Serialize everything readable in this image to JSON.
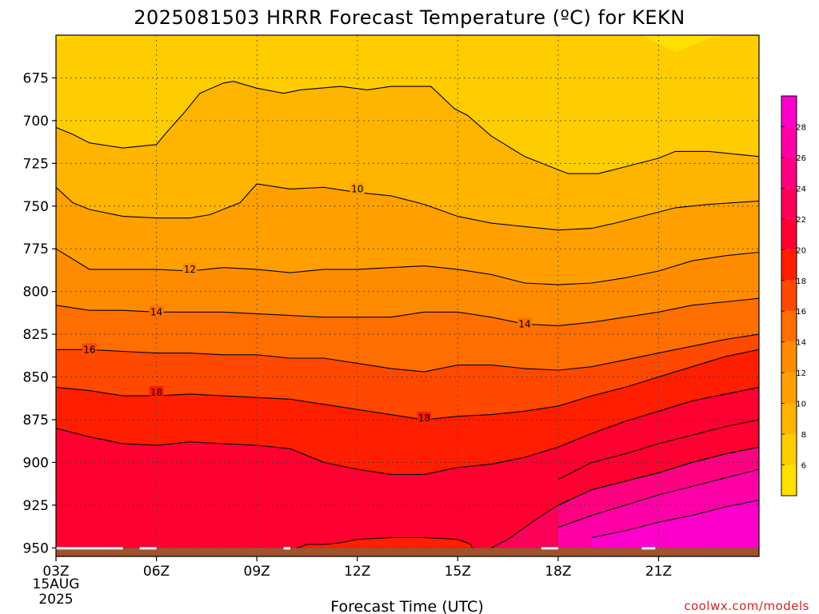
{
  "chart_data": {
    "type": "heatmap",
    "title": "2025081503 HRRR Forecast Temperature (ºC) for KEKN",
    "xlabel": "Forecast Time (UTC)",
    "ylabel": "",
    "date_labels": [
      "15AUG",
      "2025"
    ],
    "x_ticks": [
      "03Z",
      "06Z",
      "09Z",
      "12Z",
      "15Z",
      "18Z",
      "21Z"
    ],
    "x_hours": [
      3,
      6,
      9,
      12,
      15,
      18,
      21
    ],
    "y_ticks": [
      675,
      700,
      725,
      750,
      775,
      800,
      825,
      850,
      875,
      900,
      925,
      950
    ],
    "ylim": [
      955,
      650
    ],
    "y_axis": "pressure (hPa), reversed",
    "grid": true,
    "colorbar": {
      "ticks": [
        6,
        8,
        10,
        12,
        14,
        16,
        18,
        20,
        22,
        24,
        26,
        28
      ],
      "bins": [
        {
          "lo": 4,
          "hi": 6,
          "color": "#ffe000"
        },
        {
          "lo": 6,
          "hi": 8,
          "color": "#ffcc00"
        },
        {
          "lo": 8,
          "hi": 10,
          "color": "#ffb400"
        },
        {
          "lo": 10,
          "hi": 12,
          "color": "#ffa000"
        },
        {
          "lo": 12,
          "hi": 14,
          "color": "#ff8c00"
        },
        {
          "lo": 14,
          "hi": 16,
          "color": "#ff6e00"
        },
        {
          "lo": 16,
          "hi": 18,
          "color": "#ff4800"
        },
        {
          "lo": 18,
          "hi": 20,
          "color": "#ff1e00"
        },
        {
          "lo": 20,
          "hi": 22,
          "color": "#ff0030"
        },
        {
          "lo": 22,
          "hi": 24,
          "color": "#ff0058"
        },
        {
          "lo": 24,
          "hi": 26,
          "color": "#ff0080"
        },
        {
          "lo": 26,
          "hi": 28,
          "color": "#ff00a8"
        },
        {
          "lo": 28,
          "hi": 30,
          "color": "#ff00cc"
        }
      ]
    },
    "contour_labels": [
      {
        "text": "10",
        "hour": 9.0,
        "p": 740
      },
      {
        "text": "12",
        "hour": 4.0,
        "p": 787
      },
      {
        "text": "14",
        "hour": 3.0,
        "p": 812
      },
      {
        "text": "14",
        "hour": 14.0,
        "p": 819
      },
      {
        "text": "16",
        "hour": 1.0,
        "p": 834
      },
      {
        "text": "18",
        "hour": 3.0,
        "p": 859
      },
      {
        "text": "18",
        "hour": 11.0,
        "p": 874
      }
    ],
    "isotherms": [
      {
        "t": 6,
        "points": [
          [
            0,
            653
          ],
          [
            0.5,
            651
          ],
          [
            1,
            650
          ],
          [
            2,
            650
          ],
          [
            4,
            650
          ],
          [
            7.5,
            650
          ],
          [
            8,
            650
          ],
          [
            8.5,
            650
          ],
          [
            9,
            650
          ],
          [
            9.5,
            650
          ],
          [
            10,
            650
          ],
          [
            12,
            650
          ],
          [
            14,
            650
          ],
          [
            15,
            650
          ],
          [
            16,
            650
          ],
          [
            17.5,
            650
          ],
          [
            18.5,
            660
          ],
          [
            19.5,
            652
          ],
          [
            20,
            650
          ],
          [
            21,
            650
          ]
        ]
      },
      {
        "t": 8,
        "points": [
          [
            0,
            704
          ],
          [
            0.5,
            708
          ],
          [
            1,
            713
          ],
          [
            2,
            716
          ],
          [
            3,
            714
          ],
          [
            3.3,
            707
          ],
          [
            3.8,
            696
          ],
          [
            4.3,
            684
          ],
          [
            5,
            678
          ],
          [
            5.3,
            677
          ],
          [
            6,
            681
          ],
          [
            6.8,
            684
          ],
          [
            7.3,
            682
          ],
          [
            8.5,
            680
          ],
          [
            9.3,
            682
          ],
          [
            10,
            680
          ],
          [
            11.2,
            680
          ],
          [
            11.9,
            693
          ],
          [
            12.3,
            697
          ],
          [
            13,
            709
          ],
          [
            14,
            721
          ],
          [
            15.3,
            731
          ],
          [
            16.2,
            731
          ],
          [
            17,
            727
          ],
          [
            18,
            722
          ],
          [
            18.5,
            718
          ],
          [
            19.5,
            718
          ],
          [
            21,
            721
          ]
        ]
      },
      {
        "t": 10,
        "points": [
          [
            0,
            739
          ],
          [
            0.5,
            748
          ],
          [
            1,
            752
          ],
          [
            2,
            756
          ],
          [
            3,
            757
          ],
          [
            4,
            757
          ],
          [
            4.6,
            755
          ],
          [
            5.5,
            748
          ],
          [
            6,
            737
          ],
          [
            7,
            740
          ],
          [
            8,
            739
          ],
          [
            9,
            742
          ],
          [
            10,
            744
          ],
          [
            11,
            749
          ],
          [
            12,
            756
          ],
          [
            13,
            760
          ],
          [
            14,
            762
          ],
          [
            15,
            764
          ],
          [
            16,
            763
          ],
          [
            16.7,
            760
          ],
          [
            17.5,
            756
          ],
          [
            18.5,
            751
          ],
          [
            19.5,
            749
          ],
          [
            21,
            747
          ]
        ]
      },
      {
        "t": 12,
        "points": [
          [
            0,
            775
          ],
          [
            0.5,
            781
          ],
          [
            1,
            787
          ],
          [
            2,
            787
          ],
          [
            3,
            787
          ],
          [
            4,
            788
          ],
          [
            5,
            786
          ],
          [
            6,
            787
          ],
          [
            7,
            789
          ],
          [
            8,
            787
          ],
          [
            9,
            787
          ],
          [
            10,
            786
          ],
          [
            11,
            785
          ],
          [
            12,
            787
          ],
          [
            13,
            790
          ],
          [
            14,
            795
          ],
          [
            15,
            796
          ],
          [
            16,
            795
          ],
          [
            17,
            792
          ],
          [
            18,
            788
          ],
          [
            19,
            782
          ],
          [
            20,
            779
          ],
          [
            21,
            777
          ]
        ]
      },
      {
        "t": 14,
        "points": [
          [
            0,
            808
          ],
          [
            1,
            811
          ],
          [
            2,
            811
          ],
          [
            3,
            812
          ],
          [
            4,
            812
          ],
          [
            5,
            812
          ],
          [
            6,
            813
          ],
          [
            7,
            814
          ],
          [
            8,
            815
          ],
          [
            9,
            815
          ],
          [
            10,
            815
          ],
          [
            11,
            812
          ],
          [
            12,
            812
          ],
          [
            13,
            815
          ],
          [
            14,
            819
          ],
          [
            15,
            820
          ],
          [
            16,
            818
          ],
          [
            17,
            815
          ],
          [
            18,
            812
          ],
          [
            19,
            808
          ],
          [
            20,
            806
          ],
          [
            21,
            804
          ]
        ]
      },
      {
        "t": 16,
        "points": [
          [
            0,
            834
          ],
          [
            1,
            834
          ],
          [
            2,
            835
          ],
          [
            3,
            836
          ],
          [
            4,
            836
          ],
          [
            5,
            837
          ],
          [
            6,
            837
          ],
          [
            7,
            839
          ],
          [
            8,
            839
          ],
          [
            9,
            842
          ],
          [
            10,
            845
          ],
          [
            11,
            847
          ],
          [
            12,
            843
          ],
          [
            13,
            843
          ],
          [
            14,
            845
          ],
          [
            15,
            846
          ],
          [
            16,
            844
          ],
          [
            17,
            840
          ],
          [
            18,
            836
          ],
          [
            19,
            832
          ],
          [
            20,
            828
          ],
          [
            21,
            825
          ]
        ]
      },
      {
        "t": 18,
        "points": [
          [
            0,
            856
          ],
          [
            1,
            858
          ],
          [
            2,
            861
          ],
          [
            3,
            861
          ],
          [
            4,
            860
          ],
          [
            5,
            861
          ],
          [
            6,
            862
          ],
          [
            7,
            863
          ],
          [
            8,
            866
          ],
          [
            9,
            869
          ],
          [
            10,
            872
          ],
          [
            11,
            875
          ],
          [
            12,
            873
          ],
          [
            13,
            872
          ],
          [
            14,
            870
          ],
          [
            15,
            867
          ],
          [
            16,
            861
          ],
          [
            17,
            856
          ],
          [
            18,
            850
          ],
          [
            19,
            844
          ],
          [
            20,
            838
          ],
          [
            21,
            834
          ]
        ]
      },
      {
        "t": 20,
        "points": [
          [
            0,
            880
          ],
          [
            1,
            885
          ],
          [
            2,
            889
          ],
          [
            3,
            890
          ],
          [
            4,
            888
          ],
          [
            5,
            889
          ],
          [
            6,
            890
          ],
          [
            7,
            892
          ],
          [
            8,
            900
          ],
          [
            9,
            904
          ],
          [
            10,
            907
          ],
          [
            11,
            907
          ],
          [
            12,
            903
          ],
          [
            13,
            901
          ],
          [
            14,
            897
          ],
          [
            15,
            891
          ],
          [
            16,
            883
          ],
          [
            17,
            876
          ],
          [
            18,
            870
          ],
          [
            19,
            864
          ],
          [
            20,
            860
          ],
          [
            21,
            856
          ]
        ]
      },
      {
        "t": 22,
        "points": [
          [
            15,
            910
          ],
          [
            16,
            900
          ],
          [
            17,
            895
          ],
          [
            18,
            889
          ],
          [
            19,
            884
          ],
          [
            20,
            879
          ],
          [
            21,
            875
          ]
        ]
      },
      {
        "t": 24,
        "points": [
          [
            15,
            925
          ],
          [
            16,
            916
          ],
          [
            17,
            911
          ],
          [
            18,
            906
          ],
          [
            19,
            900
          ],
          [
            20,
            895
          ],
          [
            21,
            891
          ]
        ]
      },
      {
        "t": 26,
        "points": [
          [
            15,
            938
          ],
          [
            16,
            931
          ],
          [
            17,
            925
          ],
          [
            18,
            919
          ],
          [
            19,
            914
          ],
          [
            20,
            909
          ],
          [
            21,
            904
          ]
        ]
      },
      {
        "t": 28,
        "points": [
          [
            16,
            944
          ],
          [
            17,
            940
          ],
          [
            18,
            935
          ],
          [
            19,
            931
          ],
          [
            20,
            926
          ],
          [
            21,
            922
          ]
        ]
      }
    ],
    "blob_21": [
      [
        7.0,
        955
      ],
      [
        7.2,
        950
      ],
      [
        7.5,
        948
      ],
      [
        8.0,
        948
      ],
      [
        8.5,
        947
      ],
      [
        9.0,
        945
      ],
      [
        10.0,
        944
      ],
      [
        11.0,
        944
      ],
      [
        12.0,
        945
      ],
      [
        12.4,
        948
      ],
      [
        12.5,
        955
      ]
    ],
    "blob_22": [
      [
        12.8,
        955
      ],
      [
        13.0,
        950
      ],
      [
        13.5,
        945
      ],
      [
        14.0,
        938
      ],
      [
        14.6,
        930
      ],
      [
        15.0,
        925
      ],
      [
        16.0,
        916
      ],
      [
        17.0,
        911
      ],
      [
        18.0,
        906
      ],
      [
        19.0,
        900
      ],
      [
        20.0,
        895
      ],
      [
        21.0,
        891
      ],
      [
        21.0,
        955
      ]
    ],
    "surface": {
      "pressure": 955,
      "color": "#a0522d"
    },
    "surface_top_hpa": 950
  },
  "credit": "coolwx.com/models"
}
